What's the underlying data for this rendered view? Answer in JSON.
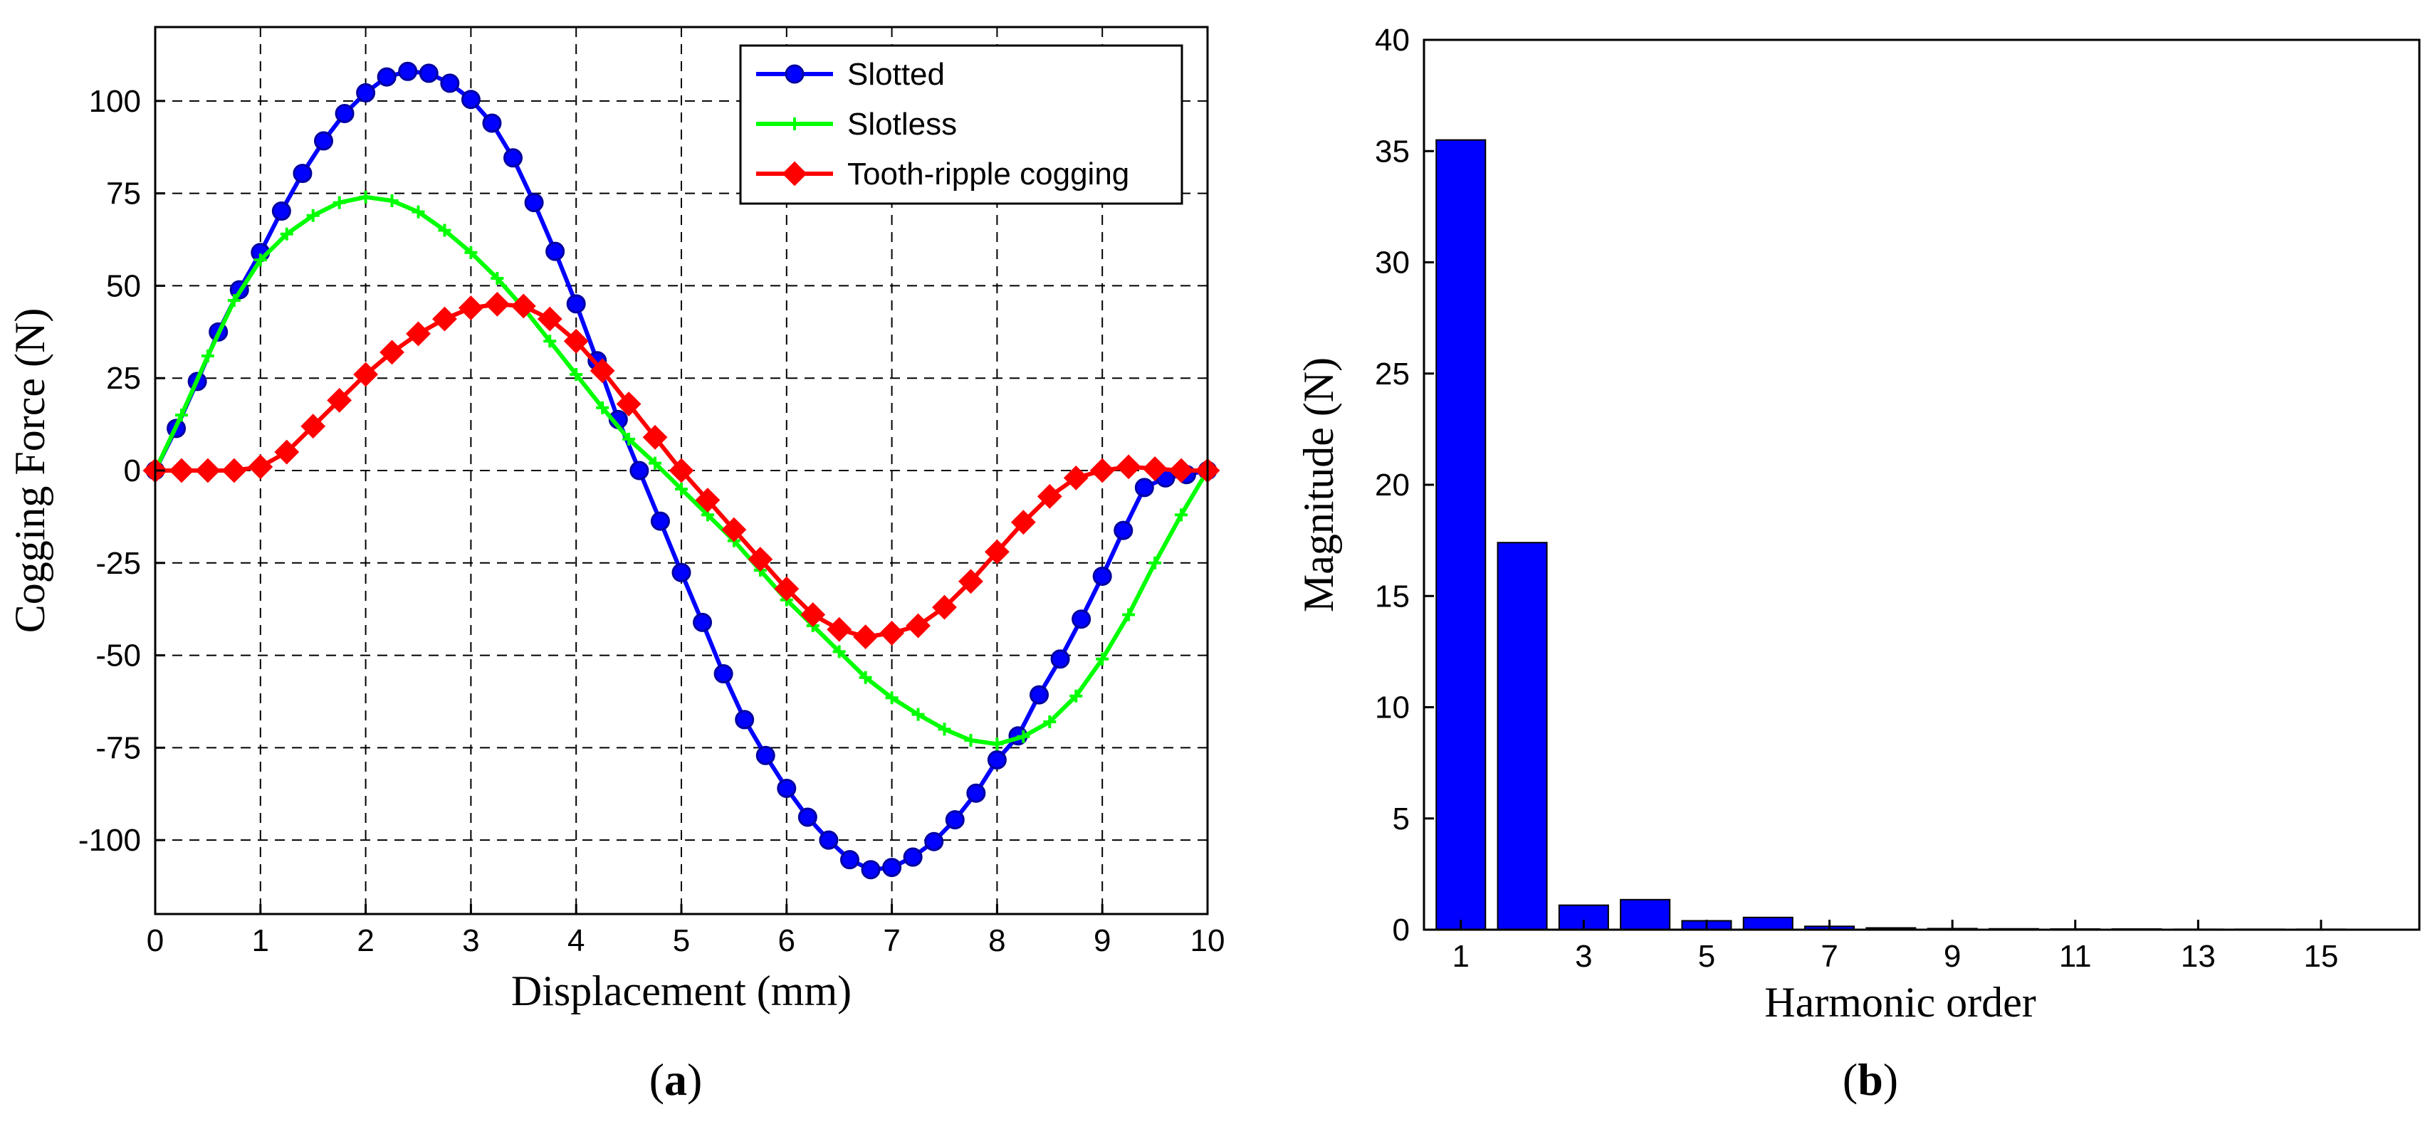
{
  "chart_data": [
    {
      "panel": "a",
      "type": "line",
      "panel_label": "a",
      "xlabel": "Displacement (mm)",
      "ylabel": "Cogging Force (N)",
      "xlim": [
        0,
        10
      ],
      "ylim": [
        -120,
        120
      ],
      "xticks": [
        0,
        1,
        2,
        3,
        4,
        5,
        6,
        7,
        8,
        9,
        10
      ],
      "yticks": [
        -100,
        -75,
        -50,
        -25,
        0,
        25,
        50,
        75,
        100
      ],
      "ytick_labels": [
        "-100",
        "-75",
        "-50",
        "-25",
        "0",
        "25",
        "50",
        "75",
        "100"
      ],
      "grid": true,
      "legend_position": "top-right",
      "series": [
        {
          "name": "Slotted",
          "color": "#0000ff",
          "marker": "circle",
          "x": [
            0,
            0.2,
            0.4,
            0.6,
            0.8,
            1.0,
            1.2,
            1.4,
            1.6,
            1.8,
            2.0,
            2.2,
            2.4,
            2.6,
            2.8,
            3.0,
            3.2,
            3.4,
            3.6,
            3.8,
            4.0,
            4.2,
            4.4,
            4.6,
            4.8,
            5.0,
            5.2,
            5.4,
            5.6,
            5.8,
            6.0,
            6.2,
            6.4,
            6.6,
            6.8,
            7.0,
            7.2,
            7.4,
            7.6,
            7.8,
            8.0,
            8.2,
            8.4,
            8.6,
            8.8,
            9.0,
            9.2,
            9.4,
            9.6,
            9.8,
            10.0
          ],
          "y": [
            0,
            11.4,
            24.1,
            37.5,
            48.9,
            59.0,
            70.2,
            80.4,
            89.2,
            96.6,
            102.2,
            106.5,
            108.0,
            107.5,
            104.8,
            100.4,
            94.0,
            84.6,
            72.5,
            59.3,
            45.1,
            29.7,
            13.8,
            0,
            -13.7,
            -27.6,
            -41.1,
            -55.0,
            -67.4,
            -77.1,
            -86.0,
            -93.8,
            -100.0,
            -105.3,
            -108.0,
            -107.4,
            -104.6,
            -100.4,
            -94.5,
            -87.3,
            -78.3,
            -71.8,
            -60.7,
            -51.0,
            -40.2,
            -28.6,
            -16.2,
            -4.6,
            -2.0,
            -1.1,
            0
          ]
        },
        {
          "name": "Slotless",
          "color": "#00ff00",
          "marker": "plus",
          "x": [
            0,
            0.25,
            0.5,
            0.75,
            1.0,
            1.25,
            1.5,
            1.75,
            2.0,
            2.25,
            2.5,
            2.75,
            3.0,
            3.25,
            3.5,
            3.75,
            4.0,
            4.25,
            4.5,
            4.75,
            5.0,
            5.25,
            5.5,
            5.75,
            6.0,
            6.25,
            6.5,
            6.75,
            7.0,
            7.25,
            7.5,
            7.75,
            8.0,
            8.25,
            8.5,
            8.75,
            9.0,
            9.25,
            9.5,
            9.75,
            10.0
          ],
          "y": [
            0,
            15,
            31,
            46,
            57,
            64,
            69,
            72.5,
            74,
            73,
            70,
            65,
            59,
            52,
            44,
            35,
            26,
            17,
            8.5,
            2,
            -5,
            -12,
            -19,
            -27,
            -35,
            -42,
            -49,
            -56,
            -61.5,
            -66,
            -70,
            -73,
            -74,
            -72,
            -68,
            -61,
            -51,
            -39,
            -25,
            -12,
            0
          ]
        },
        {
          "name": "Tooth-ripple cogging",
          "color": "#ff0000",
          "marker": "diamond",
          "x": [
            0,
            0.25,
            0.5,
            0.75,
            1.0,
            1.25,
            1.5,
            1.75,
            2.0,
            2.25,
            2.5,
            2.75,
            3.0,
            3.25,
            3.5,
            3.75,
            4.0,
            4.25,
            4.5,
            4.75,
            5.0,
            5.25,
            5.5,
            5.75,
            6.0,
            6.25,
            6.5,
            6.75,
            7.0,
            7.25,
            7.5,
            7.75,
            8.0,
            8.25,
            8.5,
            8.75,
            9.0,
            9.25,
            9.5,
            9.75,
            10.0
          ],
          "y": [
            0,
            0,
            0,
            0,
            1,
            5,
            12,
            19,
            26,
            32,
            37,
            41,
            44,
            45,
            44.5,
            41,
            35,
            27,
            18,
            9,
            0,
            -8,
            -16,
            -24,
            -32,
            -39,
            -43,
            -45,
            -44,
            -42,
            -37,
            -30,
            -22,
            -14,
            -7,
            -2,
            0,
            1,
            0.5,
            0,
            0
          ]
        }
      ]
    },
    {
      "panel": "b",
      "type": "bar",
      "panel_label": "b",
      "xlabel": "Harmonic order",
      "ylabel": "Magnitude (N)",
      "ylim": [
        0,
        40
      ],
      "yticks": [
        0,
        5,
        10,
        15,
        20,
        25,
        30,
        35,
        40
      ],
      "xticks": [
        1,
        3,
        5,
        7,
        9,
        11,
        13,
        15
      ],
      "color": "#0000ff",
      "categories": [
        1,
        2,
        3,
        4,
        5,
        6,
        7,
        8,
        9,
        10,
        11,
        12,
        13,
        14,
        15
      ],
      "values": [
        35.5,
        17.4,
        1.1,
        1.35,
        0.4,
        0.55,
        0.15,
        0.08,
        0.05,
        0.04,
        0.03,
        0.03,
        0.02,
        0.02,
        0.02
      ]
    }
  ]
}
